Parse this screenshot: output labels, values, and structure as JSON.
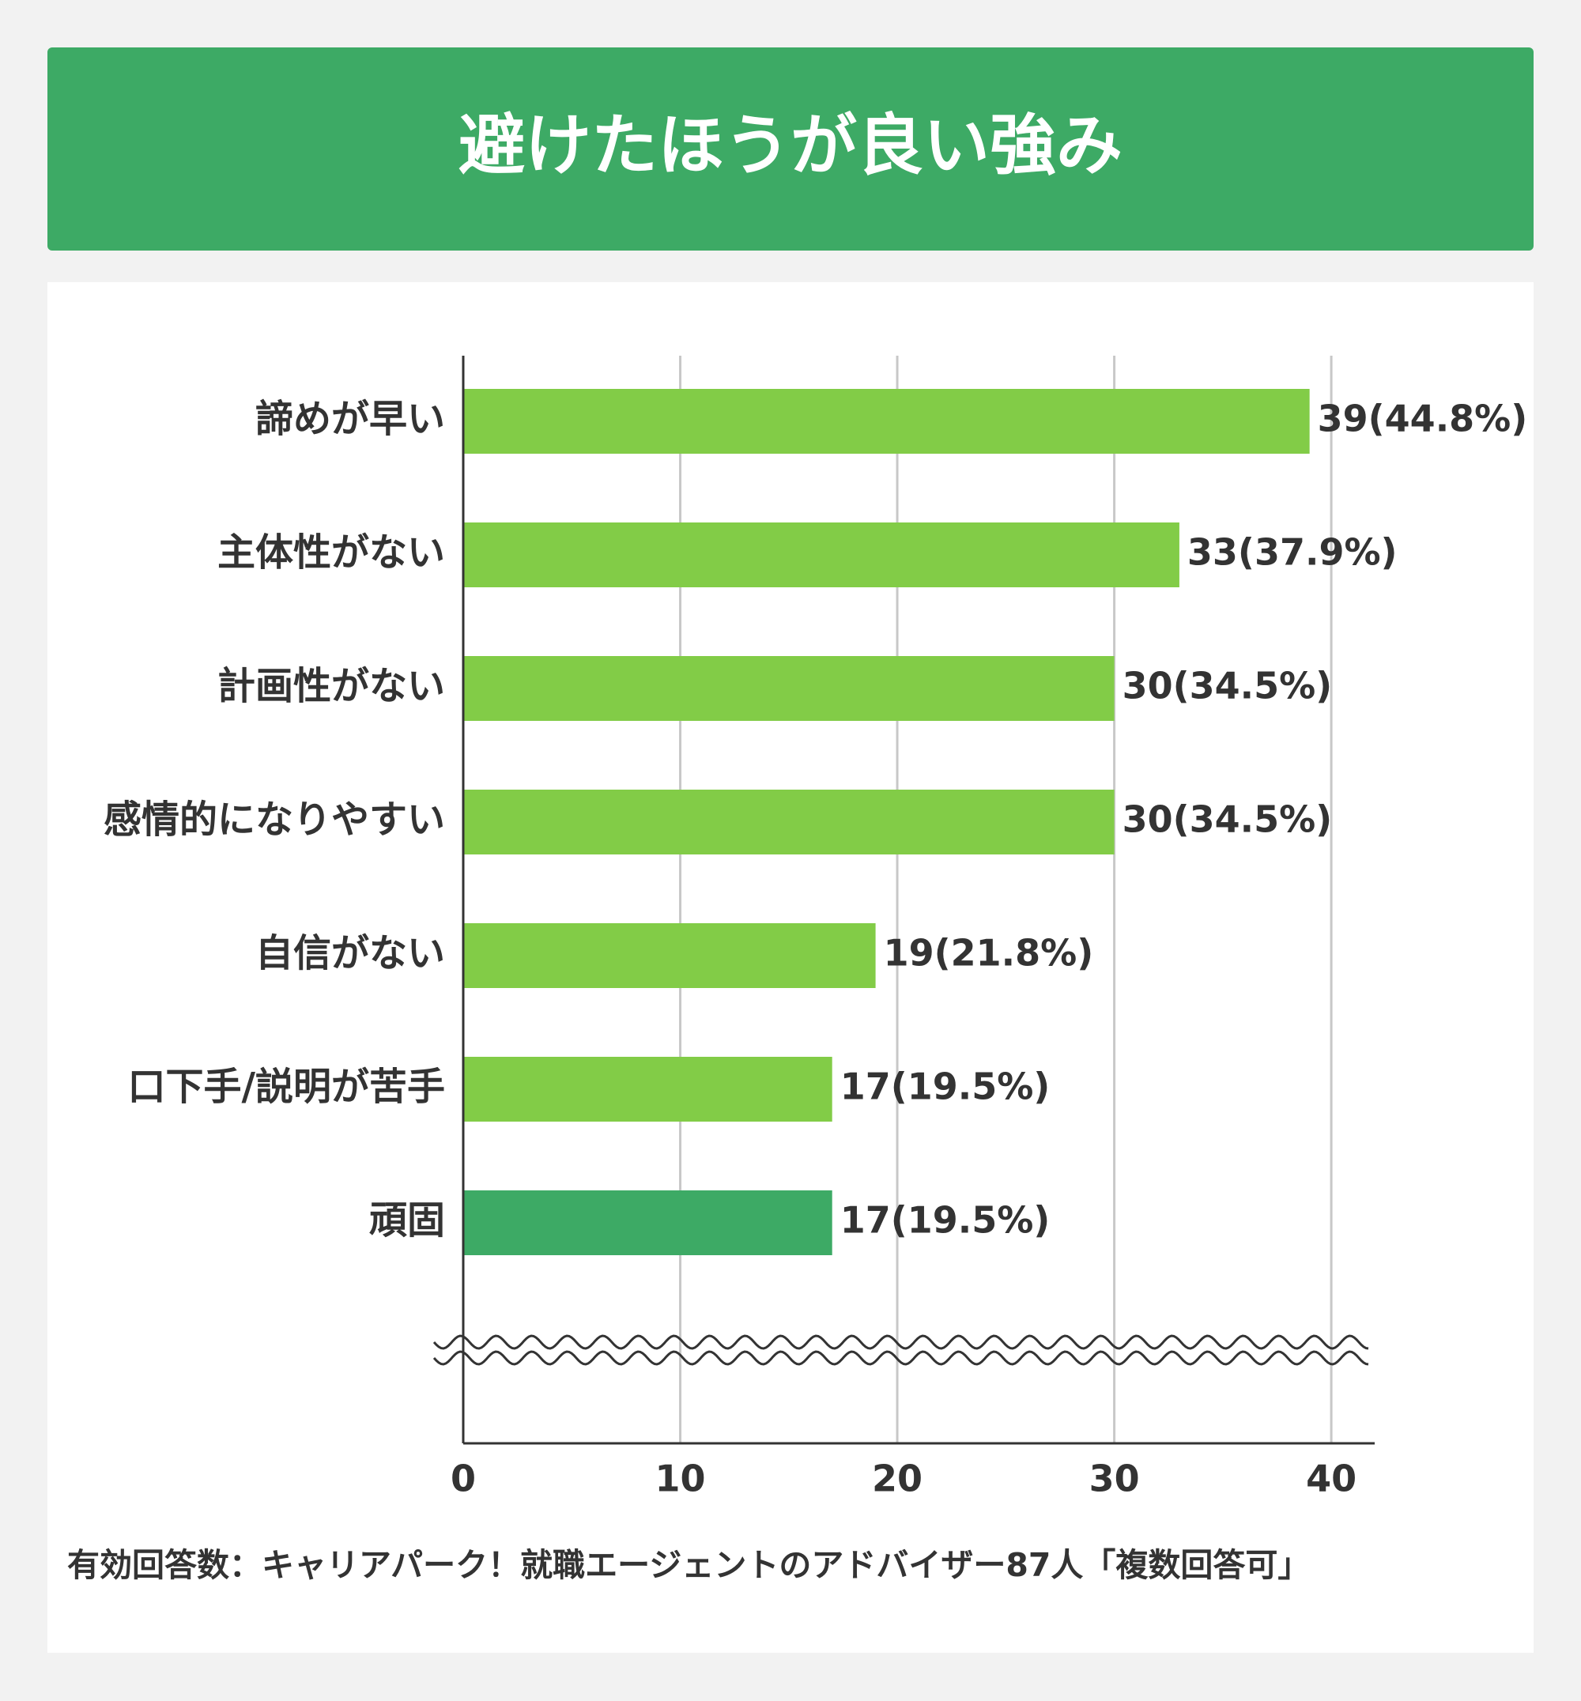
{
  "chart_data": {
    "type": "bar",
    "orientation": "horizontal",
    "title": "避けたほうが良い強み",
    "categories": [
      "諦めが早い",
      "主体性がない",
      "計画性がない",
      "感情的になりやすい",
      "自信がない",
      "口下手/説明が苦手",
      "頑固"
    ],
    "values": [
      39,
      33,
      30,
      30,
      19,
      17,
      17
    ],
    "value_labels": [
      "39(44.8%)",
      "33(37.9%)",
      "30(34.5%)",
      "30(34.5%)",
      "19(21.8%)",
      "17(19.5%)",
      "17(19.5%)"
    ],
    "colors": [
      "#82cc47",
      "#82cc47",
      "#82cc47",
      "#82cc47",
      "#82cc47",
      "#82cc47",
      "#3daa65"
    ],
    "xlim": [
      0,
      42
    ],
    "xticks": [
      0,
      10,
      20,
      30,
      40
    ],
    "grid": true,
    "note": "有効回答数：キャリアパーク！就職エージェントのアドバイザー87人「複数回答可」"
  }
}
